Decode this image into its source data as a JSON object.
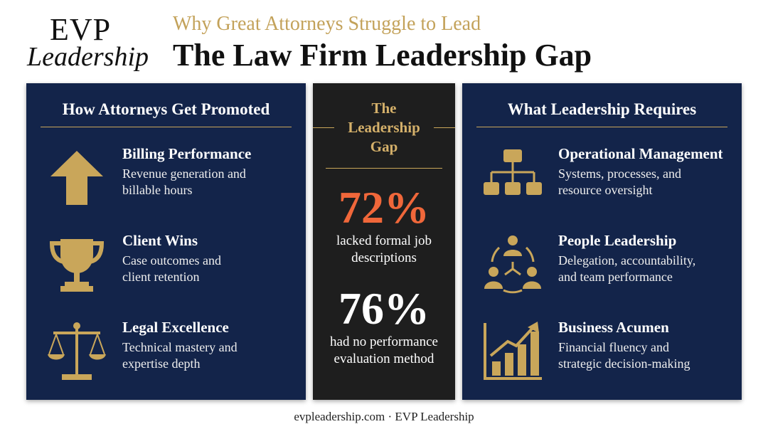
{
  "header": {
    "logo_top": "EVP",
    "logo_bottom": "Leadership",
    "subtitle": "Why Great Attorneys Struggle to Lead",
    "title": "The Law Firm Leadership Gap"
  },
  "left_panel": {
    "heading": "How Attorneys Get Promoted",
    "items": [
      {
        "title": "Billing Performance",
        "lines": [
          "Revenue generation and",
          "billable hours"
        ]
      },
      {
        "title": "Client Wins",
        "lines": [
          "Case outcomes and",
          "client retention"
        ]
      },
      {
        "title": "Legal Excellence",
        "lines": [
          "Technical mastery and",
          "expertise depth"
        ]
      }
    ]
  },
  "center_panel": {
    "heading": [
      "The",
      "Leadership",
      "Gap"
    ],
    "stats": [
      {
        "value": "72%",
        "lines": [
          "lacked formal job",
          "descriptions"
        ]
      },
      {
        "value": "76%",
        "lines": [
          "had no performance",
          "evaluation method"
        ]
      }
    ]
  },
  "right_panel": {
    "heading": "What Leadership Requires",
    "items": [
      {
        "title": "Operational Management",
        "lines": [
          "Systems, processes, and",
          "resource oversight"
        ]
      },
      {
        "title": "People Leadership",
        "lines": [
          "Delegation, accountability,",
          "and team performance"
        ]
      },
      {
        "title": "Business Acumen",
        "lines": [
          "Financial fluency and",
          "strategic decision-making"
        ]
      }
    ]
  },
  "footer": "evpleadership.com · EVP Leadership"
}
